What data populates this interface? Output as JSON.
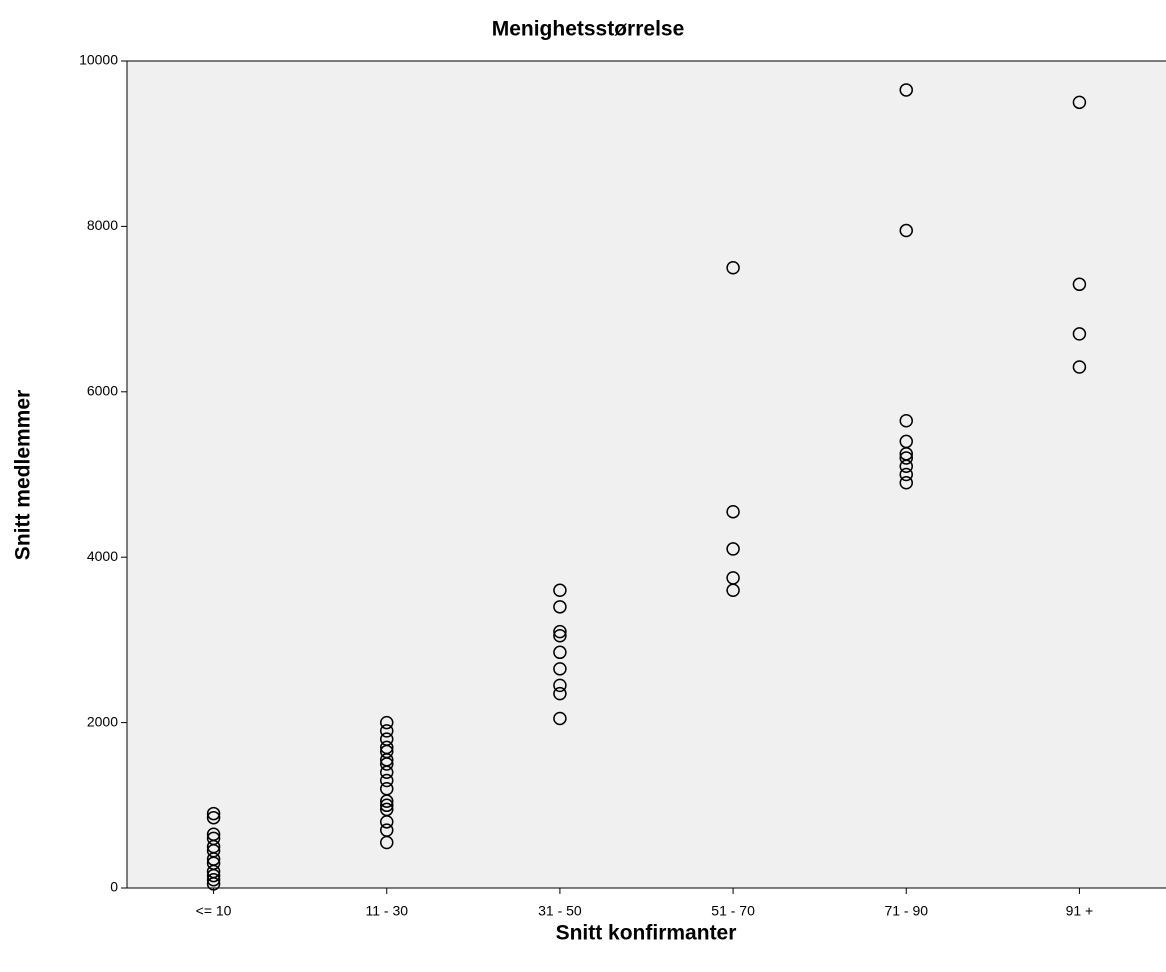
{
  "chart_data": {
    "type": "scatter",
    "title": "Menighetsstørrelse",
    "x_label": "Snitt konfirmanter",
    "y_label": "Snitt medlemmer",
    "categories": [
      "<= 10",
      "11 - 30",
      "31 - 50",
      "51 - 70",
      "71 - 90",
      "91 +"
    ],
    "values": [
      [
        900,
        850,
        650,
        600,
        500,
        450,
        350,
        300,
        200,
        150,
        100,
        50
      ],
      [
        2000,
        1900,
        1800,
        1700,
        1650,
        1550,
        1500,
        1400,
        1300,
        1200,
        1050,
        1000,
        950,
        800,
        700,
        550
      ],
      [
        3600,
        3400,
        3100,
        3050,
        2850,
        2650,
        2450,
        2350,
        2050
      ],
      [
        7500,
        4550,
        4100,
        3750,
        3600
      ],
      [
        9650,
        7950,
        5650,
        5400,
        5250,
        5200,
        5100,
        5000,
        4900
      ],
      [
        9500,
        7300,
        6700,
        6300
      ]
    ],
    "color": "#000000",
    "ylim": [
      0,
      10000
    ],
    "yticks": [
      0,
      2000,
      4000,
      6000,
      8000,
      10000
    ]
  }
}
